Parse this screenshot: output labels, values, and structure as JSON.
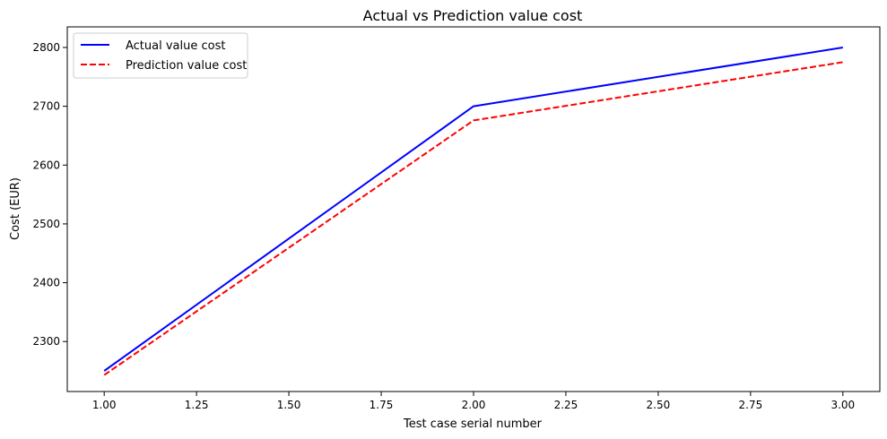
{
  "chart_data": {
    "type": "line",
    "title": "Actual vs Prediction value cost",
    "xlabel": "Test case serial number",
    "ylabel": "Cost (EUR)",
    "x": [
      1.0,
      2.0,
      3.0
    ],
    "series": [
      {
        "name": "Actual value cost",
        "values": [
          2250,
          2700,
          2800
        ],
        "color": "#0000ff",
        "style": "solid"
      },
      {
        "name": "Prediction value cost",
        "values": [
          2243,
          2676,
          2775
        ],
        "color": "#ff0000",
        "style": "dashed"
      }
    ],
    "xlim": [
      0.9,
      3.1
    ],
    "ylim": [
      2215,
      2835
    ],
    "xticks": [
      1.0,
      1.25,
      1.5,
      1.75,
      2.0,
      2.25,
      2.5,
      2.75,
      3.0
    ],
    "xtick_labels": [
      "1.00",
      "1.25",
      "1.50",
      "1.75",
      "2.00",
      "2.25",
      "2.50",
      "2.75",
      "3.00"
    ],
    "yticks": [
      2300,
      2400,
      2500,
      2600,
      2700,
      2800
    ],
    "ytick_labels": [
      "2300",
      "2400",
      "2500",
      "2600",
      "2700",
      "2800"
    ],
    "grid": false,
    "legend_position": "top-left"
  }
}
